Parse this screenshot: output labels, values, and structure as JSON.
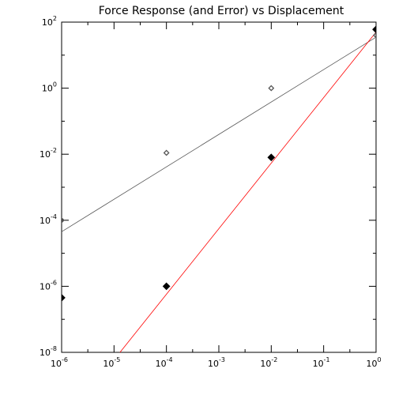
{
  "chart_data": {
    "type": "scatter",
    "title": "Force Response (and Error) vs Displacement",
    "xlabel": "",
    "ylabel": "",
    "x_scale": "log",
    "y_scale": "log",
    "xlim": [
      1e-06,
      1
    ],
    "ylim": [
      1e-08,
      100
    ],
    "grid": false,
    "x_ticks": [
      {
        "base": "10",
        "exp": "-6",
        "value": 1e-06
      },
      {
        "base": "10",
        "exp": "-5",
        "value": 1e-05
      },
      {
        "base": "10",
        "exp": "-4",
        "value": 0.0001
      },
      {
        "base": "10",
        "exp": "-3",
        "value": 0.001
      },
      {
        "base": "10",
        "exp": "-2",
        "value": 0.01
      },
      {
        "base": "10",
        "exp": "-1",
        "value": 0.1
      },
      {
        "base": "10",
        "exp": "0",
        "value": 1
      }
    ],
    "y_ticks": [
      {
        "base": "10",
        "exp": "-8",
        "value": 1e-08
      },
      {
        "base": "10",
        "exp": "-6",
        "value": 1e-06
      },
      {
        "base": "10",
        "exp": "-4",
        "value": 0.0001
      },
      {
        "base": "10",
        "exp": "-2",
        "value": 0.01
      },
      {
        "base": "10",
        "exp": "0",
        "value": 1
      },
      {
        "base": "10",
        "exp": "2",
        "value": 100
      }
    ],
    "series": [
      {
        "marker": "open-diamond",
        "color": "#555555",
        "points": [
          {
            "x": 1e-06,
            "y": 0.0001
          },
          {
            "x": 0.0001,
            "y": 0.011
          },
          {
            "x": 0.01,
            "y": 1.0
          },
          {
            "x": 1,
            "y": 40
          }
        ],
        "fit": {
          "x1": 1e-06,
          "y1": 4.5e-05,
          "x2": 1,
          "y2": 35,
          "color": "#555555"
        }
      },
      {
        "marker": "filled-diamond",
        "color": "#000000",
        "points": [
          {
            "x": 1e-06,
            "y": 4.5e-07
          },
          {
            "x": 0.0001,
            "y": 1e-06
          },
          {
            "x": 0.01,
            "y": 0.008
          },
          {
            "x": 1,
            "y": 60
          }
        ],
        "fit": {
          "x1": 1.3e-05,
          "y1": 1e-08,
          "x2": 1,
          "y2": 50,
          "color": "#ff0000"
        }
      }
    ]
  }
}
